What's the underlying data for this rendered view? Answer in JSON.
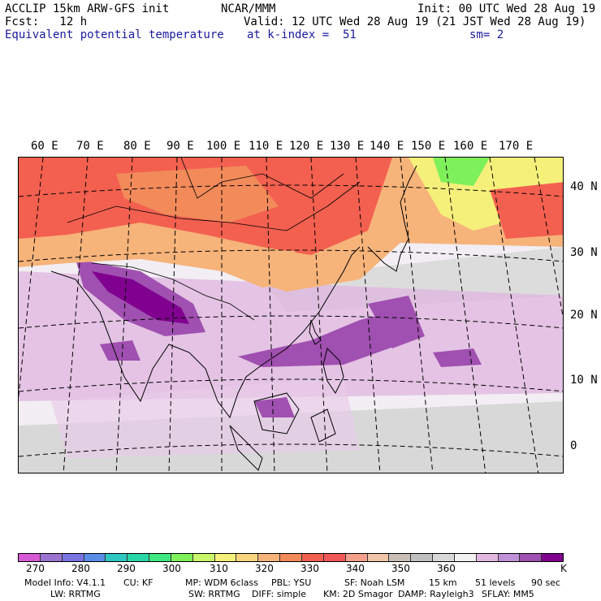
{
  "header": {
    "model": "ACCLIP 15km ARW-GFS init",
    "org": "NCAR/MMM",
    "init": "Init: 00 UTC Wed 28 Aug 19",
    "fcst": "Fcst:   12 h",
    "valid": "Valid: 12 UTC Wed 28 Aug 19 (21 JST Wed 28 Aug 19)",
    "field": "Equivalent potential temperature",
    "level": "at k-index =  51",
    "smooth": "sm= 2"
  },
  "map": {
    "lon_labels": [
      "60 E",
      "70 E",
      "80 E",
      "90 E",
      "100 E",
      "110 E",
      "120 E",
      "130 E",
      "140 E",
      "150 E",
      "160 E",
      "170 E"
    ],
    "lat_labels": [
      "40 N",
      "30 N",
      "20 N",
      "10 N",
      "0"
    ]
  },
  "colorbar": {
    "colors": [
      "#d65ad6",
      "#9a74d0",
      "#7a73e2",
      "#5a8ee6",
      "#2fc7c2",
      "#29d7a6",
      "#3ee880",
      "#7ef05a",
      "#c8f56a",
      "#f5f07a",
      "#f6d57c",
      "#f6b37a",
      "#f28a5a",
      "#f3604f",
      "#f1585a",
      "#f4a08a",
      "#f0c5a8",
      "#c8c0b8",
      "#c0c0c0",
      "#d8d8d8",
      "#f2f2f2",
      "#e0b8e0",
      "#c090d8",
      "#a050b0",
      "#800090"
    ],
    "ticks": [
      "270",
      "280",
      "290",
      "300",
      "310",
      "320",
      "330",
      "340",
      "350",
      "360"
    ],
    "unit": "K"
  },
  "footer": {
    "line1": [
      "Model Info: V4.1.1",
      "CU: KF",
      "MP: WDM 6class",
      "PBL: YSU",
      "SF: Noah LSM",
      "15 km",
      "51 levels",
      "90 sec"
    ],
    "line2": [
      "LW: RRTMG",
      "SW: RRTMG",
      "DIFF: simple",
      "KM: 2D Smagor",
      "DAMP: Rayleigh3",
      "SFLAY: MM5"
    ]
  }
}
